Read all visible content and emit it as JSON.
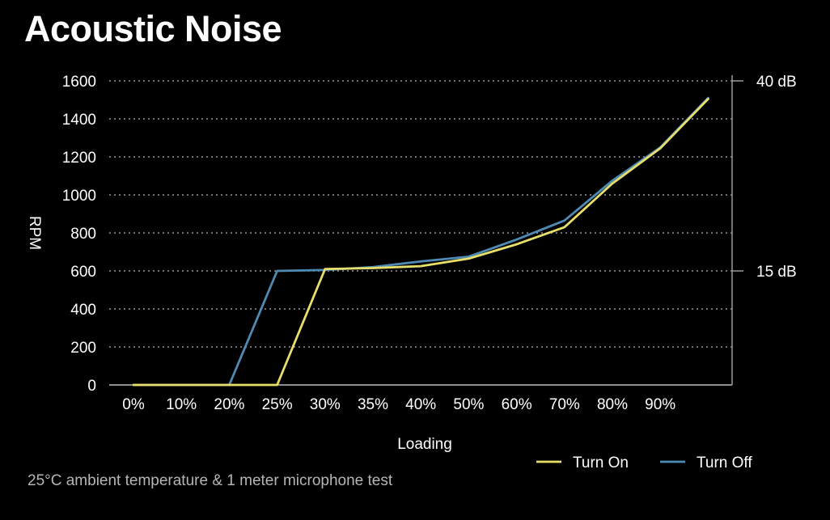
{
  "page": {
    "title": "Acoustic Noise",
    "footnote": "25°C ambient temperature & 1 meter microphone test"
  },
  "chart_data": {
    "type": "line",
    "title": "Acoustic Noise",
    "xlabel": "Loading",
    "ylabel": "RPM",
    "x": [
      "0%",
      "10%",
      "20%",
      "25%",
      "30%",
      "35%",
      "40%",
      "50%",
      "60%",
      "70%",
      "80%",
      "90%",
      ""
    ],
    "xticks": [
      "0%",
      "10%",
      "20%",
      "25%",
      "30%",
      "35%",
      "40%",
      "50%",
      "60%",
      "70%",
      "80%",
      "90%"
    ],
    "ylim": [
      0,
      1600
    ],
    "yticks": [
      0,
      200,
      400,
      600,
      800,
      1000,
      1200,
      1400,
      1600
    ],
    "secondary_axis": {
      "ticks": [
        {
          "label": "15 dB",
          "rpm": 600
        },
        {
          "label": "40 dB",
          "rpm": 1600
        }
      ]
    },
    "grid": true,
    "legend_position": "bottom-right",
    "series": [
      {
        "name": "Turn On",
        "color": "#e8df6a",
        "values": [
          0,
          0,
          0,
          0,
          610,
          615,
          625,
          665,
          740,
          830,
          1060,
          1245,
          1505
        ]
      },
      {
        "name": "Turn Off",
        "color": "#4f8ab5",
        "values": [
          0,
          0,
          0,
          600,
          605,
          620,
          650,
          675,
          765,
          865,
          1075,
          1250,
          1510
        ]
      }
    ],
    "series_draw_order": [
      1,
      0
    ]
  }
}
